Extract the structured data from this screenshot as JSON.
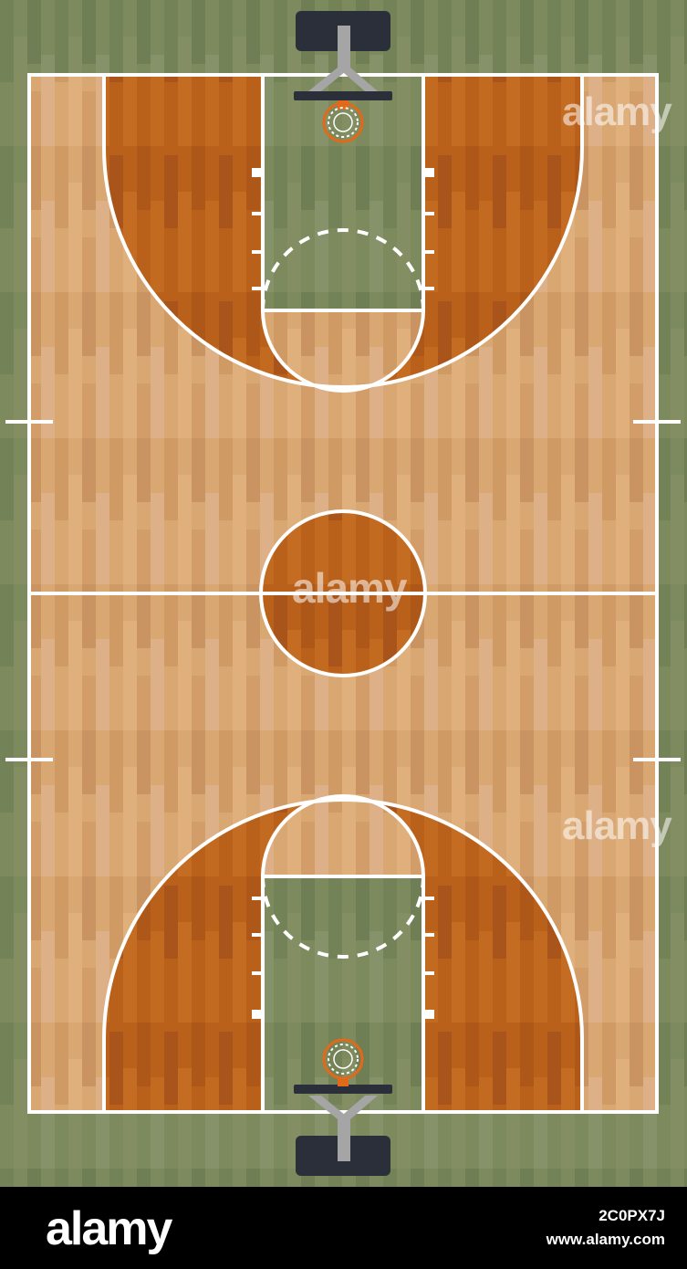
{
  "court": {
    "floor_color": "#d4a06a",
    "paint_color": "#b55e12",
    "key_color": "#7a8a5c",
    "outer_color": "#7d8a5e",
    "line_color": "#ffffff",
    "backboard_color": "#2a2f3a",
    "support_color": "#a0a0a0",
    "rim_color": "#e06a1a"
  },
  "watermarks": {
    "top_right": "alamy",
    "center": "alamy",
    "bottom_right": "alamy"
  },
  "footer": {
    "logo": "alamy",
    "image_id": "2C0PX7J",
    "url": "www.alamy.com"
  }
}
